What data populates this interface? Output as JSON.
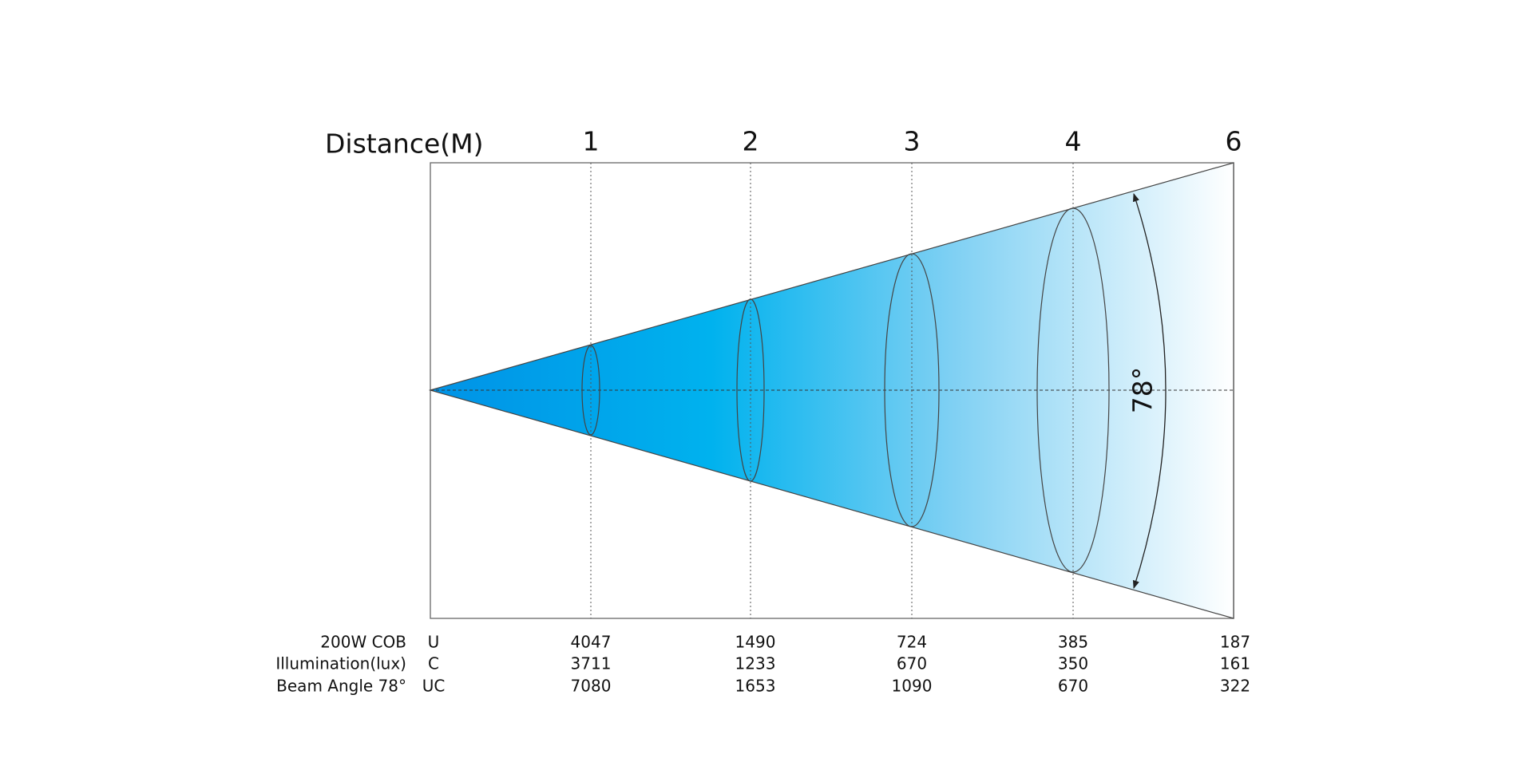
{
  "title": "Distance(M)",
  "distances": [
    1,
    2,
    3,
    4,
    6
  ],
  "angle_label": "78°",
  "row_labels": [
    "200W COB",
    "Illumination(lux)",
    "Beam Angle 78°"
  ],
  "rows": [
    {
      "label": "U",
      "values": [
        4047,
        1490,
        724,
        385,
        187
      ]
    },
    {
      "label": "C",
      "values": [
        3711,
        1233,
        670,
        350,
        161
      ]
    },
    {
      "label": "UC",
      "values": [
        7080,
        1653,
        1090,
        670,
        322
      ]
    }
  ]
}
